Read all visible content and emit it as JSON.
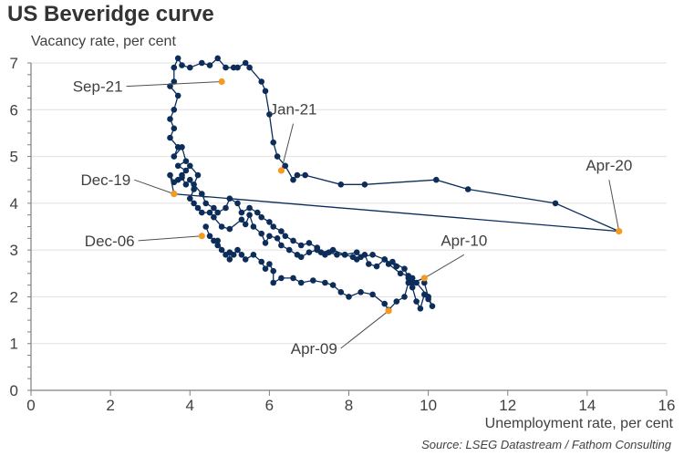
{
  "title": "US Beveridge curve",
  "subtitle": "Vacancy rate, per cent",
  "xlabel": "Unemployment rate, per cent",
  "source": "Source: LSEG Datastream / Fathom Consulting",
  "colors": {
    "line": "#0c2d5a",
    "highlight": "#f59a23",
    "axis": "#808080",
    "grid": "#e0e0e0",
    "text": "#404040"
  },
  "chart_data": {
    "type": "scatter",
    "title": "US Beveridge curve",
    "xlabel": "Unemployment rate, per cent",
    "ylabel": "Vacancy rate, per cent",
    "xlim": [
      0,
      16
    ],
    "ylim": [
      0,
      7
    ],
    "xticks": [
      0,
      2,
      4,
      6,
      8,
      10,
      12,
      14,
      16
    ],
    "yticks": [
      0,
      1,
      2,
      3,
      4,
      5,
      6,
      7
    ],
    "grid": "horizontal",
    "series": [
      {
        "connected": true,
        "points": [
          [
            4.4,
            3.5
          ],
          [
            4.5,
            3.3
          ],
          [
            4.6,
            3.2
          ],
          [
            4.7,
            3.1
          ],
          [
            4.7,
            3.2
          ],
          [
            4.8,
            3.0
          ],
          [
            4.9,
            2.9
          ],
          [
            5.0,
            2.95
          ],
          [
            5.0,
            2.8
          ],
          [
            5.1,
            2.9
          ],
          [
            5.2,
            3.0
          ],
          [
            5.3,
            2.9
          ],
          [
            5.4,
            2.8
          ],
          [
            5.6,
            2.9
          ],
          [
            5.8,
            2.75
          ],
          [
            5.9,
            2.6
          ],
          [
            6.0,
            2.7
          ],
          [
            6.1,
            2.55
          ],
          [
            6.1,
            2.3
          ],
          [
            6.3,
            2.4
          ],
          [
            6.6,
            2.4
          ],
          [
            6.8,
            2.3
          ],
          [
            7.1,
            2.35
          ],
          [
            7.4,
            2.3
          ],
          [
            7.6,
            2.25
          ],
          [
            7.8,
            2.1
          ],
          [
            8.0,
            2.0
          ],
          [
            8.3,
            2.1
          ],
          [
            8.6,
            2.05
          ],
          [
            8.9,
            1.85
          ],
          [
            9.0,
            1.72
          ],
          [
            9.2,
            1.9
          ],
          [
            9.4,
            2.0
          ],
          [
            9.5,
            2.3
          ],
          [
            9.6,
            2.2
          ],
          [
            9.7,
            1.9
          ],
          [
            9.8,
            1.75
          ],
          [
            9.9,
            2.05
          ],
          [
            10.0,
            1.95
          ],
          [
            10.1,
            1.8
          ],
          [
            10.0,
            2.0
          ],
          [
            9.9,
            2.3
          ],
          [
            9.9,
            2.4
          ],
          [
            9.6,
            2.3
          ],
          [
            9.5,
            2.4
          ],
          [
            9.4,
            2.6
          ],
          [
            9.1,
            2.75
          ],
          [
            9.2,
            2.65
          ],
          [
            8.9,
            2.8
          ],
          [
            8.7,
            2.65
          ],
          [
            8.5,
            2.7
          ],
          [
            8.4,
            2.9
          ],
          [
            8.2,
            2.8
          ],
          [
            8.1,
            2.85
          ],
          [
            7.9,
            2.9
          ],
          [
            7.7,
            2.9
          ],
          [
            7.5,
            2.95
          ],
          [
            7.4,
            2.9
          ],
          [
            7.2,
            3.0
          ],
          [
            7.0,
            2.95
          ],
          [
            6.8,
            2.85
          ],
          [
            6.7,
            2.9
          ],
          [
            6.5,
            3.0
          ],
          [
            6.3,
            3.1
          ],
          [
            6.2,
            3.25
          ],
          [
            6.0,
            3.3
          ],
          [
            5.9,
            3.15
          ],
          [
            5.8,
            3.35
          ],
          [
            5.6,
            3.5
          ],
          [
            5.5,
            3.75
          ],
          [
            5.4,
            3.55
          ],
          [
            5.3,
            3.65
          ],
          [
            5.0,
            3.45
          ],
          [
            4.8,
            3.5
          ],
          [
            4.6,
            3.7
          ],
          [
            4.5,
            3.8
          ],
          [
            4.3,
            3.8
          ],
          [
            4.2,
            3.9
          ],
          [
            4.1,
            4.0
          ],
          [
            4.0,
            4.1
          ],
          [
            4.1,
            4.3
          ],
          [
            4.0,
            4.5
          ],
          [
            3.9,
            4.4
          ],
          [
            3.8,
            4.55
          ],
          [
            3.7,
            4.5
          ],
          [
            3.6,
            4.45
          ],
          [
            3.5,
            4.6
          ],
          [
            3.6,
            4.2
          ],
          [
            14.8,
            3.4
          ],
          [
            13.2,
            4.0
          ],
          [
            11.0,
            4.3
          ],
          [
            10.2,
            4.5
          ],
          [
            8.4,
            4.4
          ],
          [
            7.8,
            4.4
          ],
          [
            6.9,
            4.6
          ],
          [
            6.7,
            4.6
          ],
          [
            6.6,
            4.5
          ],
          [
            6.4,
            4.8
          ],
          [
            6.2,
            5.0
          ],
          [
            6.1,
            5.3
          ],
          [
            6.0,
            5.9
          ],
          [
            5.9,
            6.4
          ],
          [
            5.8,
            6.6
          ],
          [
            5.5,
            6.9
          ],
          [
            5.4,
            7.0
          ],
          [
            5.2,
            6.9
          ],
          [
            5.1,
            6.9
          ],
          [
            4.9,
            6.9
          ],
          [
            4.7,
            7.1
          ],
          [
            4.5,
            6.95
          ],
          [
            4.3,
            7.0
          ],
          [
            4.0,
            6.9
          ],
          [
            3.8,
            6.95
          ],
          [
            3.7,
            7.1
          ],
          [
            3.6,
            6.9
          ],
          [
            3.6,
            6.6
          ],
          [
            3.5,
            6.5
          ],
          [
            3.7,
            6.3
          ],
          [
            3.6,
            6.0
          ],
          [
            3.5,
            5.8
          ],
          [
            3.6,
            5.6
          ],
          [
            3.5,
            5.4
          ],
          [
            3.7,
            5.2
          ],
          [
            3.6,
            5.0
          ],
          [
            3.8,
            5.2
          ],
          [
            3.9,
            4.9
          ],
          [
            3.7,
            4.8
          ],
          [
            3.9,
            4.7
          ],
          [
            3.8,
            4.6
          ],
          [
            4.0,
            4.8
          ],
          [
            4.2,
            4.6
          ],
          [
            4.1,
            4.4
          ],
          [
            4.3,
            4.2
          ],
          [
            4.4,
            4.0
          ],
          [
            4.6,
            3.9
          ],
          [
            4.7,
            3.8
          ],
          [
            4.9,
            3.9
          ],
          [
            5.0,
            4.1
          ],
          [
            5.2,
            4.0
          ],
          [
            5.3,
            3.8
          ],
          [
            5.5,
            3.9
          ],
          [
            5.7,
            3.8
          ],
          [
            5.8,
            3.7
          ],
          [
            6.0,
            3.6
          ],
          [
            6.1,
            3.5
          ],
          [
            6.3,
            3.4
          ],
          [
            6.4,
            3.3
          ],
          [
            6.6,
            3.2
          ],
          [
            6.8,
            3.1
          ],
          [
            7.0,
            3.15
          ],
          [
            7.2,
            3.05
          ],
          [
            7.3,
            2.95
          ],
          [
            7.6,
            3.0
          ],
          [
            7.9,
            2.9
          ],
          [
            8.2,
            2.95
          ],
          [
            8.3,
            2.85
          ],
          [
            8.6,
            2.9
          ],
          [
            8.9,
            2.8
          ],
          [
            9.0,
            2.7
          ],
          [
            9.3,
            2.5
          ],
          [
            9.5,
            2.45
          ],
          [
            9.6,
            2.4
          ],
          [
            9.7,
            2.3
          ],
          [
            10.0,
            2.0
          ]
        ]
      }
    ],
    "annotations": [
      {
        "label": "Sep-21",
        "x": 4.8,
        "y": 6.6,
        "label_x": 2.4,
        "label_y": 6.5
      },
      {
        "label": "Jan-21",
        "x": 6.3,
        "y": 4.7,
        "label_x": 6.6,
        "label_y": 5.7
      },
      {
        "label": "Dec-19",
        "x": 3.6,
        "y": 4.2,
        "label_x": 2.6,
        "label_y": 4.5
      },
      {
        "label": "Apr-20",
        "x": 14.8,
        "y": 3.4,
        "label_x": 14.55,
        "label_y": 4.5
      },
      {
        "label": "Dec-06",
        "x": 4.3,
        "y": 3.3,
        "label_x": 2.7,
        "label_y": 3.2
      },
      {
        "label": "Apr-10",
        "x": 9.9,
        "y": 2.4,
        "label_x": 10.9,
        "label_y": 2.9
      },
      {
        "label": "Apr-09",
        "x": 9.0,
        "y": 1.7,
        "label_x": 7.8,
        "label_y": 0.9
      }
    ]
  }
}
